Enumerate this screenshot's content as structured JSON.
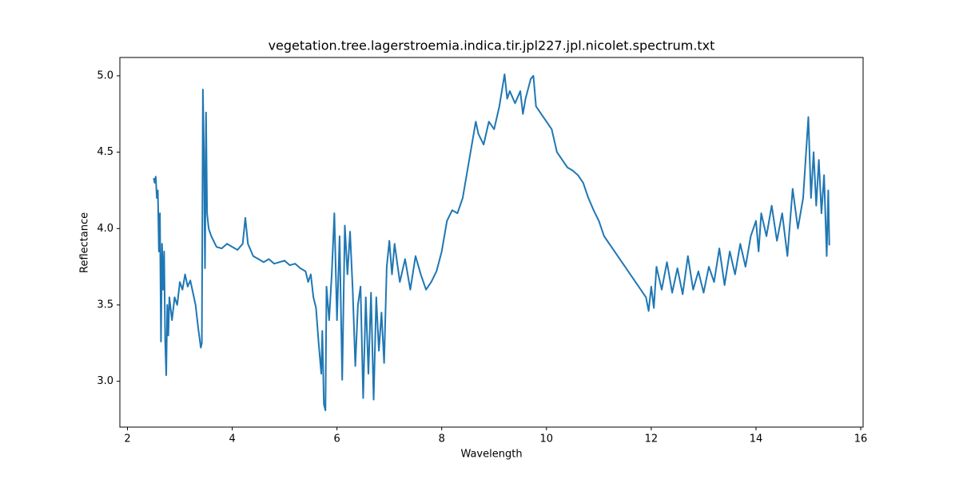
{
  "chart_data": {
    "type": "line",
    "title": "vegetation.tree.lagerstroemia.indica.tir.jpl227.jpl.nicolet.spectrum.txt",
    "x_label": "Wavelength",
    "y_label": "Reflectance",
    "xlim": [
      1.855,
      16.045
    ],
    "ylim": [
      2.7,
      5.12
    ],
    "xticks": [
      2,
      4,
      6,
      8,
      10,
      12,
      14,
      16
    ],
    "yticks": [
      {
        "value": 3,
        "label": "3.0"
      },
      {
        "value": 3.5,
        "label": "3.5"
      },
      {
        "value": 4,
        "label": "4.0"
      },
      {
        "value": 4.5,
        "label": "4.5"
      },
      {
        "value": 5,
        "label": "5.0"
      }
    ],
    "grid": false,
    "x": [
      2.5,
      2.52,
      2.54,
      2.56,
      2.58,
      2.6,
      2.62,
      2.64,
      2.66,
      2.68,
      2.7,
      2.72,
      2.74,
      2.76,
      2.78,
      2.8,
      2.85,
      2.9,
      2.95,
      3.0,
      3.05,
      3.1,
      3.15,
      3.2,
      3.25,
      3.3,
      3.35,
      3.4,
      3.42,
      3.44,
      3.46,
      3.48,
      3.5,
      3.52,
      3.55,
      3.6,
      3.7,
      3.8,
      3.9,
      4.0,
      4.1,
      4.2,
      4.25,
      4.3,
      4.4,
      4.5,
      4.6,
      4.7,
      4.8,
      4.9,
      5.0,
      5.1,
      5.2,
      5.3,
      5.4,
      5.45,
      5.5,
      5.55,
      5.6,
      5.65,
      5.7,
      5.72,
      5.75,
      5.78,
      5.8,
      5.85,
      5.9,
      5.95,
      6.0,
      6.05,
      6.1,
      6.15,
      6.2,
      6.25,
      6.3,
      6.35,
      6.4,
      6.45,
      6.5,
      6.55,
      6.6,
      6.65,
      6.7,
      6.75,
      6.8,
      6.85,
      6.9,
      6.95,
      7.0,
      7.05,
      7.1,
      7.2,
      7.3,
      7.4,
      7.5,
      7.6,
      7.7,
      7.8,
      7.9,
      8.0,
      8.1,
      8.2,
      8.3,
      8.4,
      8.5,
      8.6,
      8.65,
      8.7,
      8.8,
      8.9,
      9.0,
      9.1,
      9.2,
      9.25,
      9.3,
      9.4,
      9.5,
      9.55,
      9.6,
      9.7,
      9.75,
      9.8,
      9.9,
      10.0,
      10.1,
      10.2,
      10.3,
      10.4,
      10.5,
      10.6,
      10.7,
      10.8,
      10.9,
      11.0,
      11.1,
      11.2,
      11.3,
      11.4,
      11.5,
      11.6,
      11.7,
      11.8,
      11.9,
      11.95,
      12.0,
      12.05,
      12.1,
      12.2,
      12.3,
      12.4,
      12.5,
      12.6,
      12.7,
      12.8,
      12.9,
      13.0,
      13.1,
      13.2,
      13.3,
      13.4,
      13.5,
      13.6,
      13.7,
      13.8,
      13.9,
      14.0,
      14.05,
      14.1,
      14.2,
      14.3,
      14.4,
      14.5,
      14.6,
      14.7,
      14.8,
      14.9,
      15.0,
      15.05,
      15.1,
      15.15,
      15.2,
      15.25,
      15.3,
      15.35,
      15.38,
      15.4
    ],
    "series": [
      {
        "color": "#1f77b4",
        "values": [
          4.33,
          4.3,
          4.34,
          4.2,
          4.25,
          3.85,
          4.1,
          3.26,
          3.9,
          3.6,
          3.85,
          3.26,
          3.04,
          3.5,
          3.3,
          3.55,
          3.4,
          3.55,
          3.5,
          3.65,
          3.6,
          3.7,
          3.62,
          3.66,
          3.58,
          3.5,
          3.35,
          3.22,
          3.25,
          4.91,
          4.5,
          3.74,
          4.76,
          4.1,
          4.0,
          3.95,
          3.88,
          3.87,
          3.9,
          3.88,
          3.86,
          3.9,
          4.07,
          3.9,
          3.82,
          3.8,
          3.78,
          3.8,
          3.77,
          3.78,
          3.79,
          3.76,
          3.77,
          3.74,
          3.72,
          3.65,
          3.7,
          3.55,
          3.48,
          3.25,
          3.05,
          3.33,
          2.85,
          2.81,
          3.62,
          3.4,
          3.7,
          4.1,
          3.4,
          3.95,
          3.01,
          4.02,
          3.7,
          3.98,
          3.6,
          3.1,
          3.5,
          3.62,
          2.89,
          3.55,
          3.05,
          3.58,
          2.88,
          3.55,
          3.2,
          3.45,
          3.12,
          3.75,
          3.92,
          3.7,
          3.9,
          3.65,
          3.8,
          3.6,
          3.82,
          3.7,
          3.6,
          3.65,
          3.72,
          3.85,
          4.05,
          4.12,
          4.1,
          4.2,
          4.4,
          4.6,
          4.7,
          4.62,
          4.55,
          4.7,
          4.65,
          4.8,
          5.01,
          4.85,
          4.9,
          4.82,
          4.9,
          4.75,
          4.85,
          4.98,
          5.0,
          4.8,
          4.75,
          4.7,
          4.65,
          4.5,
          4.45,
          4.4,
          4.38,
          4.35,
          4.3,
          4.2,
          4.12,
          4.05,
          3.95,
          3.9,
          3.85,
          3.8,
          3.75,
          3.7,
          3.65,
          3.6,
          3.55,
          3.46,
          3.62,
          3.48,
          3.75,
          3.6,
          3.78,
          3.58,
          3.74,
          3.57,
          3.82,
          3.6,
          3.72,
          3.58,
          3.75,
          3.65,
          3.87,
          3.63,
          3.85,
          3.7,
          3.9,
          3.75,
          3.95,
          4.05,
          3.85,
          4.1,
          3.95,
          4.15,
          3.92,
          4.1,
          3.82,
          4.26,
          4.0,
          4.2,
          4.73,
          4.2,
          4.5,
          4.15,
          4.45,
          4.1,
          4.35,
          3.82,
          4.25,
          3.89
        ]
      }
    ]
  }
}
